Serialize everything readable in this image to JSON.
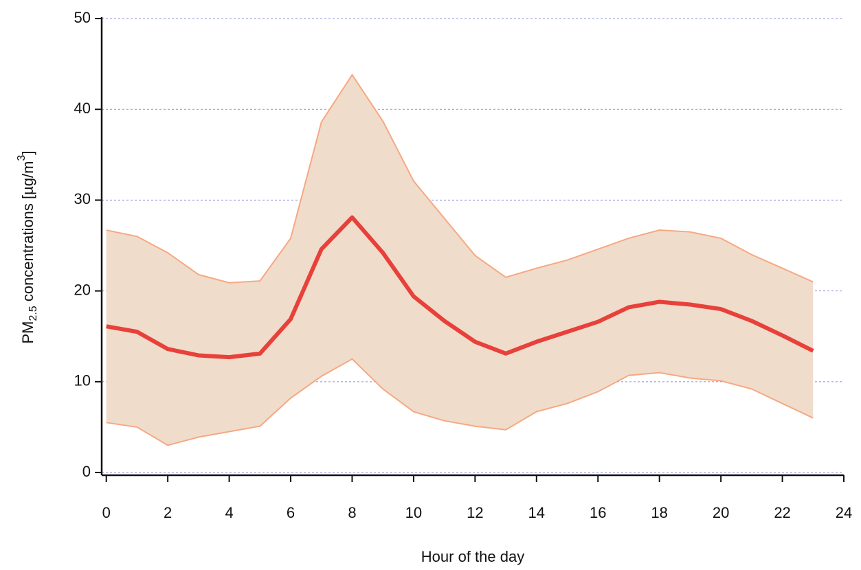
{
  "chart_data": {
    "type": "line",
    "x_label": "Hour of the day",
    "y_label": [
      "PM",
      "2.5",
      " concentrations [µg/m",
      "3",
      "]"
    ],
    "x": [
      0,
      1,
      2,
      3,
      4,
      5,
      6,
      7,
      8,
      9,
      10,
      11,
      12,
      13,
      14,
      15,
      16,
      17,
      18,
      19,
      20,
      21,
      22,
      23
    ],
    "series": [
      {
        "color": "#e8403a",
        "values": [
          16.1,
          15.5,
          13.6,
          12.9,
          12.7,
          13.1,
          16.9,
          24.6,
          28.1,
          24.2,
          19.4,
          16.7,
          14.4,
          13.1,
          14.4,
          15.5,
          16.6,
          18.2,
          18.8,
          18.5,
          18.0,
          16.7,
          15.1,
          13.4
        ]
      }
    ],
    "band": {
      "fill": "#f0dccb",
      "stroke": "#f6a882",
      "upper": [
        26.7,
        26.0,
        24.2,
        21.8,
        20.9,
        21.1,
        25.8,
        38.6,
        43.8,
        38.7,
        32.1,
        28.0,
        23.9,
        21.5,
        22.5,
        23.4,
        24.6,
        25.8,
        26.7,
        26.5,
        25.8,
        24.0,
        22.5,
        21.0
      ],
      "lower": [
        5.5,
        5.0,
        3.0,
        3.9,
        4.5,
        5.1,
        8.2,
        10.6,
        12.5,
        9.2,
        6.7,
        5.7,
        5.1,
        4.7,
        6.7,
        7.6,
        8.9,
        10.7,
        11.0,
        10.4,
        10.1,
        9.2,
        7.6,
        6.0
      ]
    },
    "xlim": [
      -0.15,
      24
    ],
    "ylim": [
      -0.3,
      50
    ],
    "xticks": [
      0,
      2,
      4,
      6,
      8,
      10,
      12,
      14,
      16,
      18,
      20,
      22,
      24
    ],
    "yticks": [
      0,
      10,
      20,
      30,
      40,
      50
    ],
    "grid": true,
    "grid_color": "#8a8fe0"
  }
}
